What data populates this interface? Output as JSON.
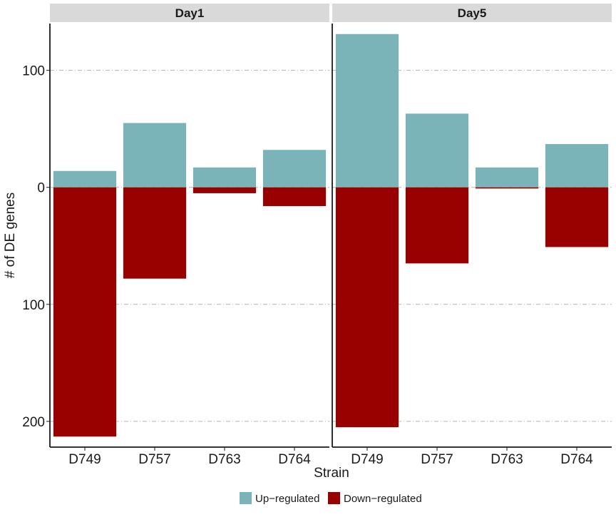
{
  "chart_data": {
    "type": "bar",
    "facets": [
      "Day1",
      "Day5"
    ],
    "categories": [
      "D749",
      "D757",
      "D763",
      "D764"
    ],
    "series": [
      {
        "name": "Up-regulated",
        "color": "#7BB4B8",
        "values": {
          "Day1": [
            14,
            55,
            17,
            32
          ],
          "Day5": [
            131,
            63,
            17,
            37
          ]
        }
      },
      {
        "name": "Down-regulated",
        "color": "#990000",
        "values": {
          "Day1": [
            213,
            78,
            5,
            16
          ],
          "Day5": [
            205,
            65,
            1,
            51
          ]
        }
      }
    ],
    "xlabel": "Strain",
    "ylabel": "# of DE genes",
    "ylim": [
      -222,
      140
    ],
    "yticks": [
      {
        "value": 100,
        "label": "100"
      },
      {
        "value": 0,
        "label": "0"
      },
      {
        "value": -100,
        "label": "100"
      },
      {
        "value": -200,
        "label": "200"
      }
    ],
    "grid": true,
    "legend_position": "bottom"
  }
}
